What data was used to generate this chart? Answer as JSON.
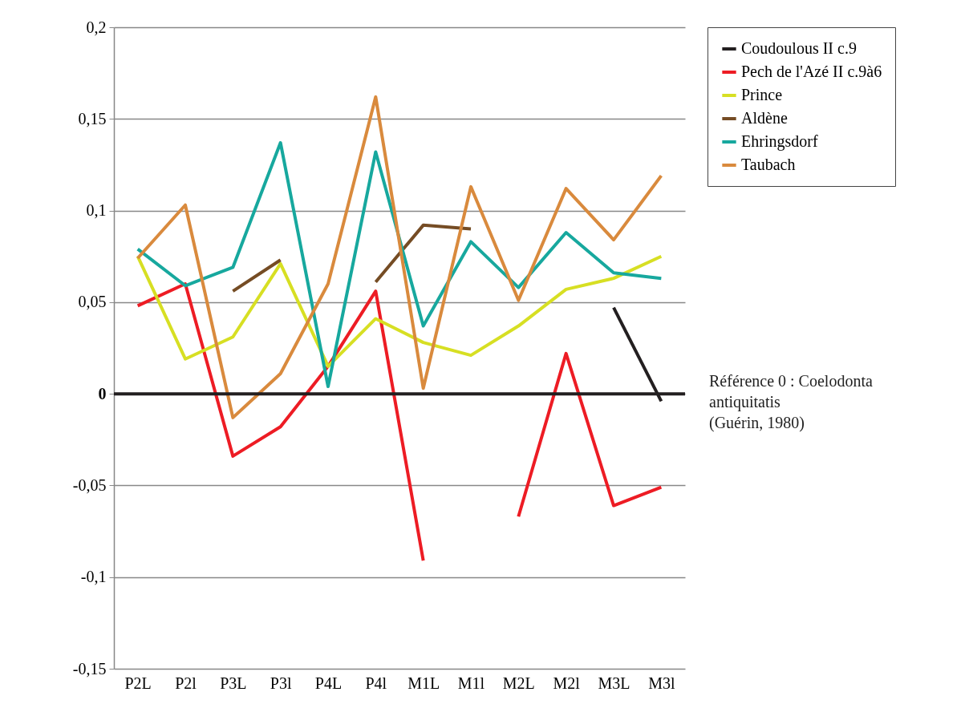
{
  "chart_data": {
    "type": "line",
    "categories": [
      "P2L",
      "P2l",
      "P3L",
      "P3l",
      "P4L",
      "P4l",
      "M1L",
      "M1l",
      "M2L",
      "M2l",
      "M3L",
      "M3l"
    ],
    "series": [
      {
        "name": "Coudoulous II c.9",
        "color": "#231f20",
        "values": [
          null,
          null,
          null,
          null,
          null,
          null,
          null,
          null,
          null,
          null,
          0.047,
          -0.004
        ]
      },
      {
        "name": "Pech de l'Azé II c.9à6",
        "color": "#ed1c24",
        "values": [
          0.048,
          0.06,
          -0.034,
          -0.018,
          0.015,
          0.056,
          -0.091,
          null,
          -0.067,
          0.022,
          -0.061,
          -0.051
        ]
      },
      {
        "name": "Prince",
        "color": "#d7df23",
        "values": [
          0.075,
          0.019,
          0.031,
          0.071,
          0.015,
          0.041,
          0.028,
          0.021,
          0.037,
          0.057,
          0.063,
          0.075
        ]
      },
      {
        "name": "Aldène",
        "color": "#754c24",
        "values": [
          null,
          null,
          0.056,
          0.073,
          null,
          0.061,
          0.092,
          0.09,
          null,
          null,
          null,
          null
        ]
      },
      {
        "name": "Ehringsdorf",
        "color": "#17a89e",
        "values": [
          0.079,
          0.059,
          0.069,
          0.137,
          0.004,
          0.132,
          0.037,
          0.083,
          0.058,
          0.088,
          0.066,
          0.063
        ]
      },
      {
        "name": "Taubach",
        "color": "#d98a3d",
        "values": [
          0.074,
          0.103,
          -0.013,
          0.011,
          0.06,
          0.162,
          0.003,
          0.113,
          0.051,
          0.112,
          0.084,
          0.119
        ]
      }
    ],
    "ylim": [
      -0.15,
      0.2
    ],
    "yticks": [
      {
        "value": 0.2,
        "label": "0,2"
      },
      {
        "value": 0.15,
        "label": "0,15"
      },
      {
        "value": 0.1,
        "label": "0,1"
      },
      {
        "value": 0.05,
        "label": "0,05"
      },
      {
        "value": 0,
        "label": "0"
      },
      {
        "value": -0.05,
        "label": "-0,05"
      },
      {
        "value": -0.1,
        "label": "-0,1"
      },
      {
        "value": -0.15,
        "label": "-0,15"
      }
    ],
    "ref_lines": [
      {
        "axis": "y",
        "value": 0,
        "label": null,
        "color": "#231f20"
      }
    ],
    "annotations": [
      "Référence 0 : Coelodonta antiquitatis",
      "(Guérin, 1980)"
    ],
    "grid": "y",
    "legend": "right",
    "line_style": "solid",
    "marker": "none"
  }
}
